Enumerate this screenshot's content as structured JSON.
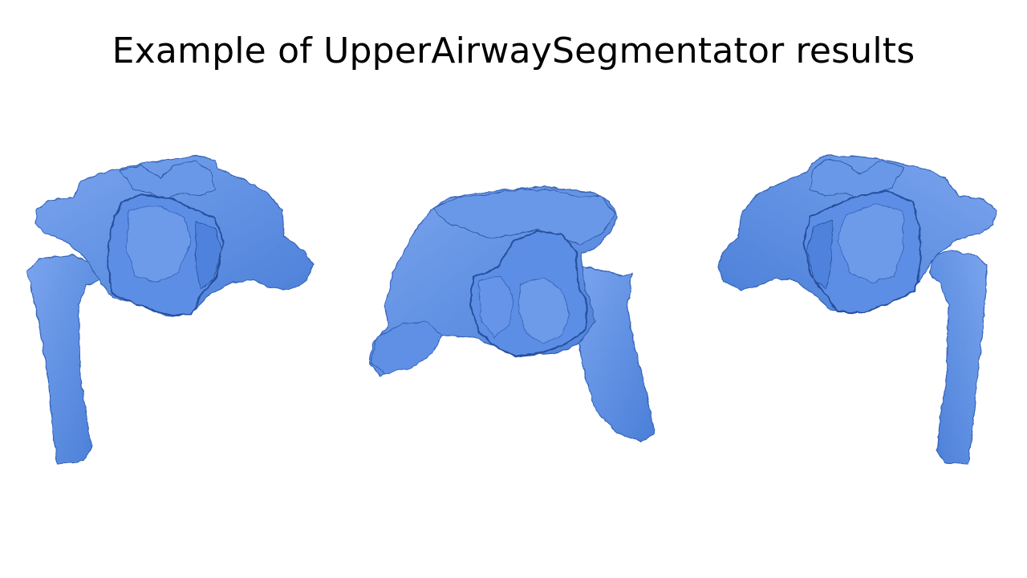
{
  "slide": {
    "title": "Example of UpperAirwaySegmentator results"
  },
  "colors": {
    "background": "#ffffff",
    "title_text": "#000000",
    "model_fill": "#5b8ee6",
    "model_shadow": "#3563b8",
    "model_highlight": "#8fb4f2"
  },
  "views": [
    {
      "name": "left-lateral-view"
    },
    {
      "name": "frontal-view"
    },
    {
      "name": "right-lateral-view"
    }
  ]
}
